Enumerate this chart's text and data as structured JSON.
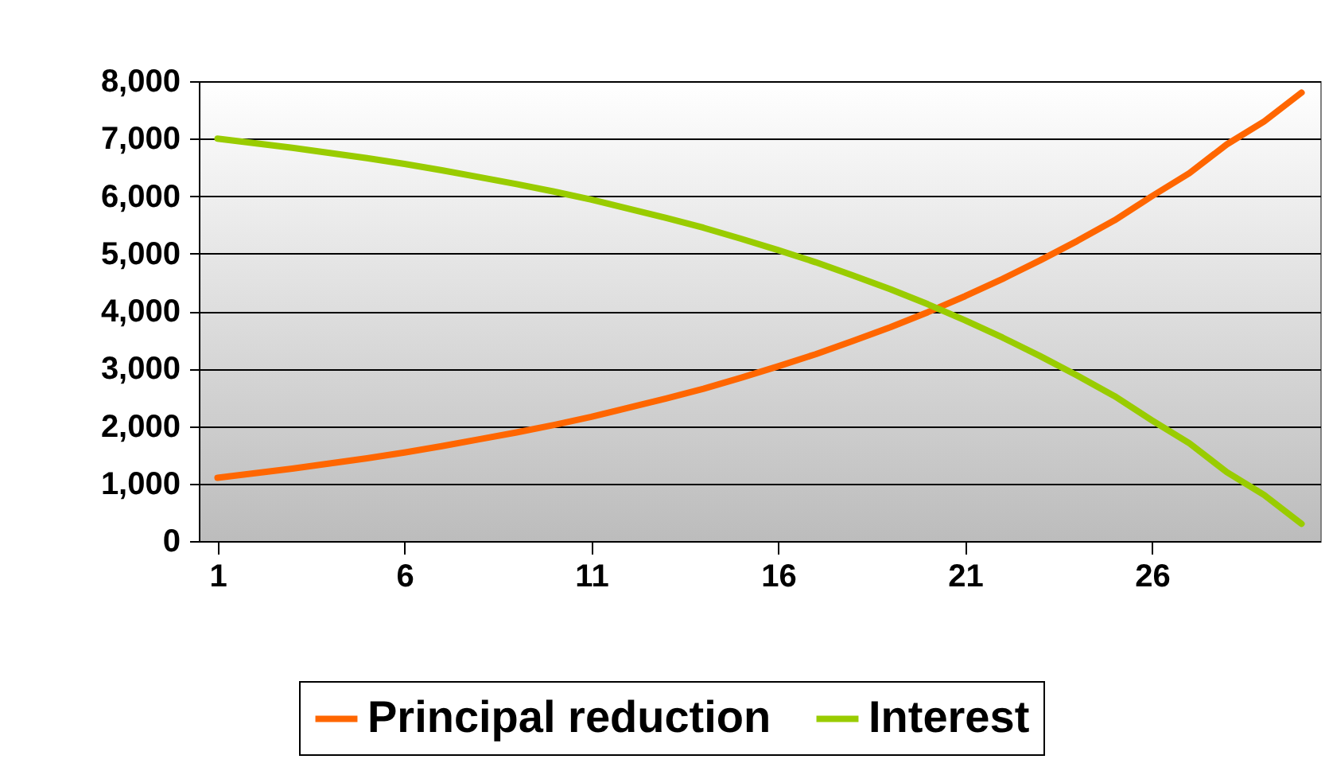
{
  "chart_data": {
    "type": "line",
    "x": [
      1,
      2,
      3,
      4,
      5,
      6,
      7,
      8,
      9,
      10,
      11,
      12,
      13,
      14,
      15,
      16,
      17,
      18,
      19,
      20,
      21,
      22,
      23,
      24,
      25,
      26,
      27,
      28,
      29,
      30
    ],
    "series": [
      {
        "name": "Principal reduction",
        "color": "#ff6600",
        "values": [
          1100,
          1180,
          1260,
          1350,
          1440,
          1540,
          1650,
          1770,
          1890,
          2020,
          2160,
          2320,
          2480,
          2650,
          2840,
          3040,
          3250,
          3480,
          3720,
          3980,
          4260,
          4560,
          4880,
          5220,
          5580,
          6000,
          6400,
          6900,
          7300,
          7800
        ]
      },
      {
        "name": "Interest",
        "color": "#99cc00",
        "values": [
          7000,
          6920,
          6840,
          6750,
          6660,
          6560,
          6450,
          6330,
          6210,
          6080,
          5940,
          5780,
          5620,
          5450,
          5260,
          5060,
          4850,
          4620,
          4380,
          4120,
          3840,
          3540,
          3220,
          2880,
          2520,
          2100,
          1700,
          1200,
          800,
          300
        ]
      }
    ],
    "xlim": [
      0.5,
      30.5
    ],
    "xticks": [
      1,
      6,
      11,
      16,
      21,
      26
    ],
    "ylim": [
      0,
      8000
    ],
    "yticks": [
      0,
      {
        "value": 1000,
        "label": "1,000"
      },
      {
        "value": 2000,
        "label": "2,000"
      },
      {
        "value": 3000,
        "label": "3,000"
      },
      {
        "value": 4000,
        "label": "4,000"
      },
      {
        "value": 5000,
        "label": "5,000"
      },
      {
        "value": 6000,
        "label": "6,000"
      },
      {
        "value": 7000,
        "label": "7,000"
      },
      {
        "value": 8000,
        "label": "8,000"
      }
    ],
    "grid": "y",
    "legend": "bottom",
    "marker": "none",
    "line_style": "solid"
  }
}
